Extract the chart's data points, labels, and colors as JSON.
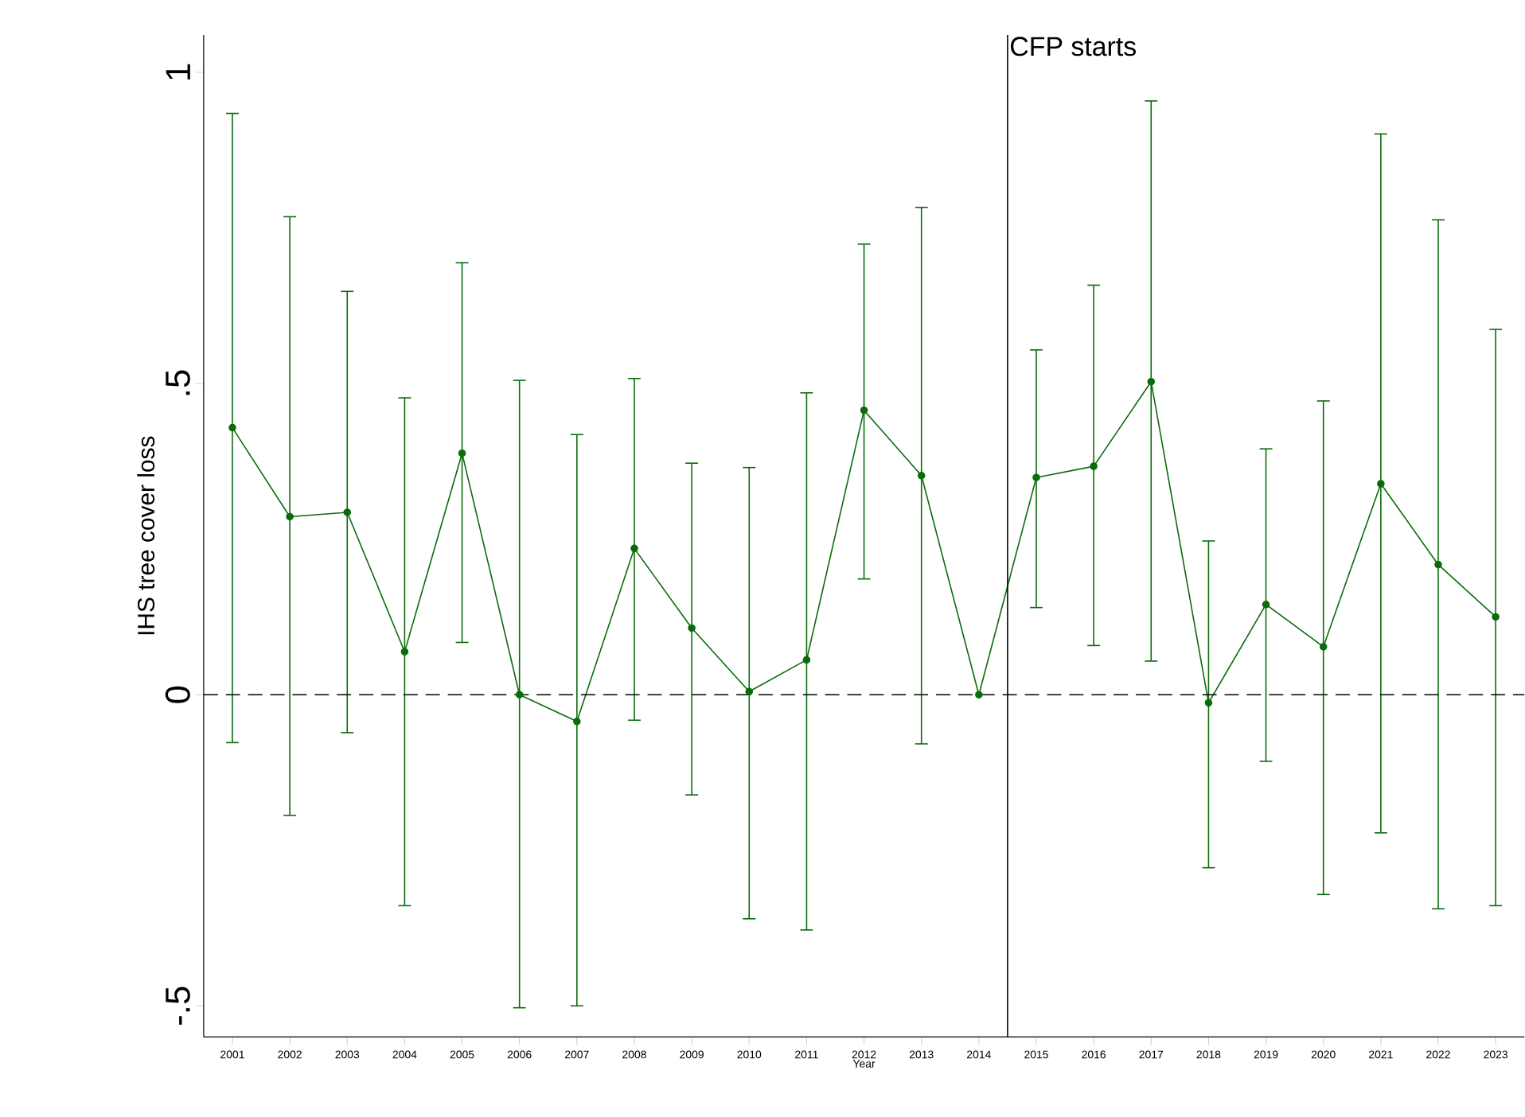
{
  "chart_data": {
    "type": "line",
    "xlabel": "Year",
    "ylabel": "IHS tree cover loss",
    "x": [
      2001,
      2002,
      2003,
      2004,
      2005,
      2006,
      2007,
      2008,
      2009,
      2010,
      2011,
      2012,
      2013,
      2014,
      2015,
      2016,
      2017,
      2018,
      2019,
      2020,
      2021,
      2022,
      2023
    ],
    "series": [
      {
        "color": "#0b6b0b",
        "values": [
          0.429,
          0.286,
          0.293,
          0.069,
          0.388,
          0.0,
          -0.043,
          0.235,
          0.107,
          0.005,
          0.056,
          0.457,
          0.352,
          0.0,
          0.349,
          0.367,
          0.503,
          -0.013,
          0.145,
          0.077,
          0.339,
          0.209,
          0.125
        ],
        "errors": [
          [
            -0.077,
            0.934
          ],
          [
            -0.194,
            0.768
          ],
          [
            -0.061,
            0.648
          ],
          [
            -0.339,
            0.477
          ],
          [
            0.084,
            0.694
          ],
          [
            -0.503,
            0.505
          ],
          [
            -0.5,
            0.418
          ],
          [
            -0.041,
            0.508
          ],
          [
            -0.161,
            0.372
          ],
          [
            -0.36,
            0.365
          ],
          [
            -0.378,
            0.485
          ],
          [
            0.186,
            0.724
          ],
          [
            -0.079,
            0.783
          ],
          null,
          [
            0.14,
            0.554
          ],
          [
            0.079,
            0.658
          ],
          [
            0.054,
            0.954
          ],
          [
            -0.278,
            0.247
          ],
          [
            -0.107,
            0.395
          ],
          [
            -0.321,
            0.472
          ],
          [
            -0.222,
            0.901
          ],
          [
            -0.344,
            0.763
          ],
          [
            -0.339,
            0.587
          ]
        ]
      }
    ],
    "marker": "circle",
    "xlim": [
      2000.5,
      2023.5
    ],
    "xticks": [
      2001,
      2002,
      2003,
      2004,
      2005,
      2006,
      2007,
      2008,
      2009,
      2010,
      2011,
      2012,
      2013,
      2014,
      2015,
      2016,
      2017,
      2018,
      2019,
      2020,
      2021,
      2022,
      2023
    ],
    "ylim": [
      -0.55,
      1.06
    ],
    "yticks": [
      {
        "value": -0.5,
        "label": "-.5"
      },
      {
        "value": 0,
        "label": "0"
      },
      {
        "value": 0.5,
        "label": ".5"
      },
      {
        "value": 1,
        "label": "1"
      }
    ],
    "ref_lines": [
      {
        "axis": "y",
        "value": 0,
        "line_style": "dashed",
        "color": "#000000"
      },
      {
        "axis": "x",
        "value": 2014.5,
        "label": "CFP starts",
        "color": "#000000"
      }
    ]
  }
}
